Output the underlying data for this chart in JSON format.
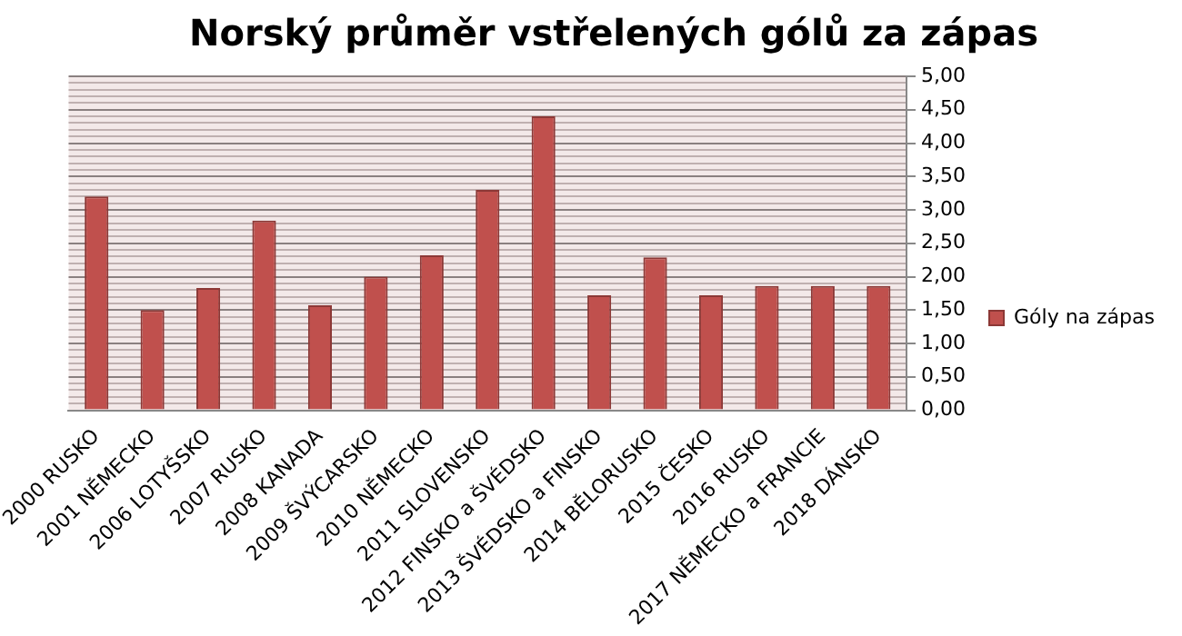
{
  "chart_data": {
    "type": "bar",
    "title": "Norský průměr vstřelených gólů za zápas",
    "categories": [
      "2000 RUSKO",
      "2001 NĚMECKO",
      "2006 LOTYŠSKO",
      "2007 RUSKO",
      "2008 KANADA",
      "2009 ŠVÝCARSKO",
      "2010 NĚMECKO",
      "2011 SLOVENSKO",
      "2012 FINSKO a ŠVÉDSKO",
      "2013 ŠVÉDSKO a FINSKO",
      "2014 BĚLORUSKO",
      "2015 ČESKO",
      "2016 RUSKO",
      "2017 NĚMECKO a FRANCIE",
      "2018 DÁNSKO"
    ],
    "series": [
      {
        "name": "Góly na zápas",
        "color": "#c0504d",
        "values": [
          3.2,
          1.5,
          1.83,
          2.84,
          1.57,
          2.0,
          2.32,
          3.3,
          4.4,
          1.72,
          2.29,
          1.72,
          1.86,
          1.86,
          1.86
        ]
      }
    ],
    "ylim": [
      0,
      5
    ],
    "yticks": [
      {
        "value": 0,
        "label": "0,00"
      },
      {
        "value": 0.1,
        "label": null
      },
      {
        "value": 0.2,
        "label": null
      },
      {
        "value": 0.3,
        "label": null
      },
      {
        "value": 0.4,
        "label": null
      },
      {
        "value": 0.5,
        "label": "0,50"
      },
      {
        "value": 0.6,
        "label": null
      },
      {
        "value": 0.7,
        "label": null
      },
      {
        "value": 0.8,
        "label": null
      },
      {
        "value": 0.9,
        "label": null
      },
      {
        "value": 1,
        "label": "1,00"
      },
      {
        "value": 1.1,
        "label": null
      },
      {
        "value": 1.2,
        "label": null
      },
      {
        "value": 1.3,
        "label": null
      },
      {
        "value": 1.4,
        "label": null
      },
      {
        "value": 1.5,
        "label": "1,50"
      },
      {
        "value": 1.6,
        "label": null
      },
      {
        "value": 1.7,
        "label": null
      },
      {
        "value": 1.8,
        "label": null
      },
      {
        "value": 1.9,
        "label": null
      },
      {
        "value": 2,
        "label": "2,00"
      },
      {
        "value": 2.1,
        "label": null
      },
      {
        "value": 2.2,
        "label": null
      },
      {
        "value": 2.3,
        "label": null
      },
      {
        "value": 2.4,
        "label": null
      },
      {
        "value": 2.5,
        "label": "2,50"
      },
      {
        "value": 2.6,
        "label": null
      },
      {
        "value": 2.7,
        "label": null
      },
      {
        "value": 2.8,
        "label": null
      },
      {
        "value": 2.9,
        "label": null
      },
      {
        "value": 3,
        "label": "3,00"
      },
      {
        "value": 3.1,
        "label": null
      },
      {
        "value": 3.2,
        "label": null
      },
      {
        "value": 3.3,
        "label": null
      },
      {
        "value": 3.4,
        "label": null
      },
      {
        "value": 3.5,
        "label": "3,50"
      },
      {
        "value": 3.6,
        "label": null
      },
      {
        "value": 3.7,
        "label": null
      },
      {
        "value": 3.8,
        "label": null
      },
      {
        "value": 3.9,
        "label": null
      },
      {
        "value": 4,
        "label": "4,00"
      },
      {
        "value": 4.1,
        "label": null
      },
      {
        "value": 4.2,
        "label": null
      },
      {
        "value": 4.3,
        "label": null
      },
      {
        "value": 4.4,
        "label": null
      },
      {
        "value": 4.5,
        "label": "4,50"
      },
      {
        "value": 4.6,
        "label": null
      },
      {
        "value": 4.7,
        "label": null
      },
      {
        "value": 4.8,
        "label": null
      },
      {
        "value": 4.9,
        "label": null
      },
      {
        "value": 5,
        "label": "5,00"
      }
    ],
    "grid": "y",
    "legend": "right"
  }
}
